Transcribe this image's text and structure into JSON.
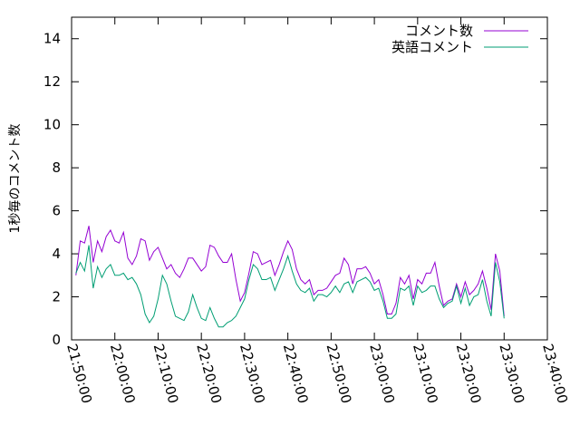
{
  "chart_data": {
    "type": "line",
    "ylabel": "1秒毎のコメント数",
    "xlabel": "",
    "xlim": [
      "21:50:00",
      "23:40:00"
    ],
    "ylim": [
      0,
      15
    ],
    "x_ticks": [
      "21:50:00",
      "22:00:00",
      "22:10:00",
      "22:20:00",
      "22:30:00",
      "22:40:00",
      "22:50:00",
      "23:00:00",
      "23:10:00",
      "23:20:00",
      "23:30:00",
      "23:40:00"
    ],
    "y_ticks": [
      0,
      2,
      4,
      6,
      8,
      10,
      12,
      14
    ],
    "grid": false,
    "legend": "top-right",
    "x_start": "21:51:00",
    "x_step_min": 1,
    "series": [
      {
        "name": "コメント数",
        "color": "#9400d3",
        "values": [
          3.0,
          4.6,
          4.5,
          5.3,
          3.6,
          4.6,
          4.1,
          4.8,
          5.1,
          4.6,
          4.5,
          5.0,
          3.8,
          3.5,
          3.9,
          4.7,
          4.6,
          3.7,
          4.1,
          4.3,
          3.8,
          3.3,
          3.5,
          3.1,
          2.9,
          3.3,
          3.8,
          3.8,
          3.5,
          3.2,
          3.4,
          4.4,
          4.3,
          3.9,
          3.6,
          3.6,
          4.0,
          2.8,
          1.8,
          2.2,
          3.1,
          4.1,
          4.0,
          3.5,
          3.6,
          3.7,
          3.0,
          3.5,
          4.1,
          4.6,
          4.2,
          3.3,
          2.8,
          2.6,
          2.8,
          2.1,
          2.3,
          2.3,
          2.4,
          2.7,
          3.0,
          3.1,
          3.8,
          3.5,
          2.6,
          3.3,
          3.3,
          3.4,
          3.1,
          2.6,
          2.8,
          2.1,
          1.2,
          1.2,
          1.7,
          2.9,
          2.6,
          3.0,
          1.9,
          2.8,
          2.6,
          3.1,
          3.1,
          3.6,
          2.5,
          1.6,
          1.8,
          1.9,
          2.6,
          2.0,
          2.7,
          2.1,
          2.3,
          2.6,
          3.2,
          2.4,
          1.4,
          4.0,
          3.2,
          1.1
        ]
      },
      {
        "name": "英語コメント",
        "color": "#009e73",
        "values": [
          3.1,
          3.6,
          3.2,
          4.4,
          2.4,
          3.4,
          2.9,
          3.3,
          3.5,
          3.0,
          3.0,
          3.1,
          2.8,
          2.9,
          2.6,
          2.1,
          1.2,
          0.8,
          1.1,
          1.9,
          3.0,
          2.6,
          1.8,
          1.1,
          1.0,
          0.9,
          1.3,
          2.1,
          1.5,
          1.0,
          0.9,
          1.5,
          1.0,
          0.6,
          0.6,
          0.8,
          0.9,
          1.1,
          1.5,
          1.9,
          2.8,
          3.5,
          3.3,
          2.8,
          2.8,
          2.9,
          2.3,
          2.8,
          3.3,
          3.9,
          3.2,
          2.6,
          2.3,
          2.2,
          2.4,
          1.8,
          2.1,
          2.1,
          2.0,
          2.2,
          2.5,
          2.2,
          2.6,
          2.7,
          2.2,
          2.7,
          2.8,
          2.9,
          2.7,
          2.3,
          2.4,
          1.8,
          1.0,
          1.0,
          1.2,
          2.4,
          2.3,
          2.5,
          1.6,
          2.5,
          2.2,
          2.3,
          2.5,
          2.5,
          1.9,
          1.5,
          1.7,
          1.8,
          2.5,
          1.7,
          2.4,
          1.6,
          2.0,
          2.1,
          2.8,
          1.8,
          1.1,
          3.6,
          2.7,
          1.0
        ]
      }
    ]
  }
}
